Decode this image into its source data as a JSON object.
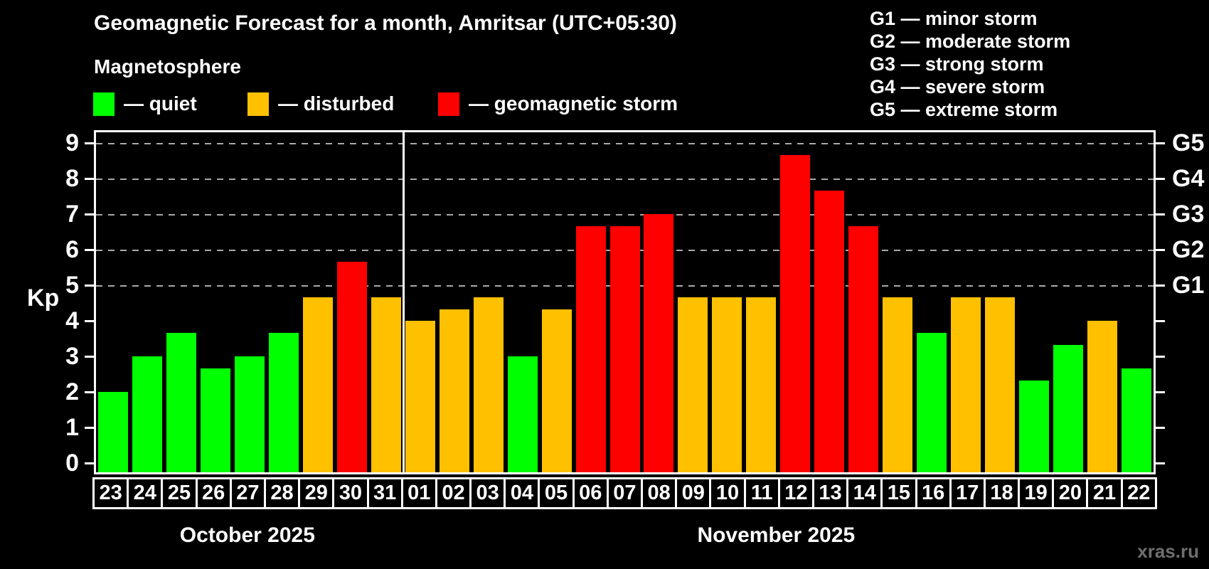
{
  "header": {
    "title": "Geomagnetic Forecast for a month, Amritsar (UTC+05:30)",
    "subtitle": "Magnetosphere"
  },
  "legend": {
    "items": [
      {
        "name": "quiet",
        "label": "— quiet"
      },
      {
        "name": "disturbed",
        "label": "— disturbed"
      },
      {
        "name": "storm",
        "label": "— geomagnetic storm"
      }
    ]
  },
  "colors": {
    "quiet": "#00ff00",
    "disturbed": "#ffc000",
    "storm": "#ff0000",
    "background": "#000000",
    "text": "#ffffff",
    "gridline": "#a9a9a9",
    "watermark": "#6f6f6f"
  },
  "g_legend": {
    "items": [
      "G1 — minor storm",
      "G2 — moderate storm",
      "G3 — strong storm",
      "G4 — severe storm",
      "G5 — extreme storm"
    ]
  },
  "axis": {
    "y_label": "Kp",
    "y_ticks": [
      0,
      1,
      2,
      3,
      4,
      5,
      6,
      7,
      8,
      9
    ],
    "right_levels": [
      {
        "label": "G1",
        "kp": 5
      },
      {
        "label": "G2",
        "kp": 6
      },
      {
        "label": "G3",
        "kp": 7
      },
      {
        "label": "G4",
        "kp": 8
      },
      {
        "label": "G5",
        "kp": 9
      }
    ]
  },
  "months": [
    {
      "label": "October 2025",
      "days": 9
    },
    {
      "label": "November 2025",
      "days": 22
    }
  ],
  "watermark": "xras.ru",
  "chart_data": {
    "type": "bar",
    "title": "Geomagnetic Forecast for a month, Amritsar (UTC+05:30)",
    "xlabel": "",
    "ylabel": "Kp",
    "ylim": [
      0,
      9
    ],
    "grid": true,
    "gridlines_at": [
      5,
      6,
      7,
      8,
      9
    ],
    "legend_position": "top-left",
    "categories": [
      "Oct 23",
      "Oct 24",
      "Oct 25",
      "Oct 26",
      "Oct 27",
      "Oct 28",
      "Oct 29",
      "Oct 30",
      "Oct 31",
      "Nov 01",
      "Nov 02",
      "Nov 03",
      "Nov 04",
      "Nov 05",
      "Nov 06",
      "Nov 07",
      "Nov 08",
      "Nov 09",
      "Nov 10",
      "Nov 11",
      "Nov 12",
      "Nov 13",
      "Nov 14",
      "Nov 15",
      "Nov 16",
      "Nov 17",
      "Nov 18",
      "Nov 19",
      "Nov 20",
      "Nov 21",
      "Nov 22"
    ],
    "day_labels": [
      "23",
      "24",
      "25",
      "26",
      "27",
      "28",
      "29",
      "30",
      "31",
      "01",
      "02",
      "03",
      "04",
      "05",
      "06",
      "07",
      "08",
      "09",
      "10",
      "11",
      "12",
      "13",
      "14",
      "15",
      "16",
      "17",
      "18",
      "19",
      "20",
      "21",
      "22"
    ],
    "values": [
      2,
      3,
      3.67,
      2.67,
      3,
      3.67,
      4.67,
      5.67,
      4.67,
      4,
      4.33,
      4.67,
      3,
      4.33,
      6.67,
      6.67,
      7,
      4.67,
      4.67,
      4.67,
      8.67,
      7.67,
      6.67,
      4.67,
      3.67,
      4.67,
      4.67,
      2.33,
      3.33,
      4,
      2.67
    ],
    "statuses": [
      "quiet",
      "quiet",
      "quiet",
      "quiet",
      "quiet",
      "quiet",
      "disturbed",
      "storm",
      "disturbed",
      "disturbed",
      "disturbed",
      "disturbed",
      "quiet",
      "disturbed",
      "storm",
      "storm",
      "storm",
      "disturbed",
      "disturbed",
      "disturbed",
      "storm",
      "storm",
      "storm",
      "disturbed",
      "quiet",
      "disturbed",
      "disturbed",
      "quiet",
      "quiet",
      "disturbed",
      "quiet"
    ]
  }
}
